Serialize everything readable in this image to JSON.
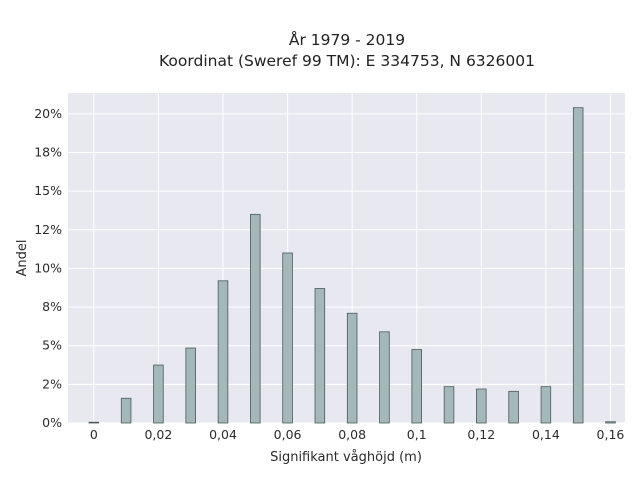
{
  "chart_data": {
    "type": "bar",
    "title": [
      "År 1979 - 2019",
      "Koordinat (Sweref 99 TM): E 334753, N 6326001"
    ],
    "xlabel": "Signifikant våghöjd (m)",
    "ylabel": "Andel",
    "x_ticks": [
      {
        "value": 0,
        "label": "0"
      },
      {
        "value": 0.02,
        "label": "0,02"
      },
      {
        "value": 0.04,
        "label": "0,04"
      },
      {
        "value": 0.06,
        "label": "0,06"
      },
      {
        "value": 0.08,
        "label": "0,08"
      },
      {
        "value": 0.1,
        "label": "0,1"
      },
      {
        "value": 0.12,
        "label": "0,12"
      },
      {
        "value": 0.14,
        "label": "0,14"
      },
      {
        "value": 0.16,
        "label": "0,16"
      }
    ],
    "y_ticks": [
      {
        "value": 0,
        "label": "0%"
      },
      {
        "value": 0.025,
        "label": "2%"
      },
      {
        "value": 0.05,
        "label": "5%"
      },
      {
        "value": 0.075,
        "label": "8%"
      },
      {
        "value": 0.1,
        "label": "10%"
      },
      {
        "value": 0.125,
        "label": "12%"
      },
      {
        "value": 0.15,
        "label": "15%"
      },
      {
        "value": 0.175,
        "label": "18%"
      },
      {
        "value": 0.2,
        "label": "20%"
      }
    ],
    "xlim": [
      -0.008,
      0.1645
    ],
    "ylim": [
      0,
      0.2135
    ],
    "x": [
      0,
      0.01,
      0.02,
      0.03,
      0.04,
      0.05,
      0.06,
      0.07,
      0.08,
      0.09,
      0.1,
      0.11,
      0.12,
      0.13,
      0.14,
      0.15,
      0.16
    ],
    "values": [
      0.0005,
      0.016,
      0.0375,
      0.0485,
      0.092,
      0.135,
      0.11,
      0.087,
      0.071,
      0.059,
      0.0475,
      0.0235,
      0.022,
      0.0205,
      0.0235,
      0.204,
      0.0008
    ],
    "grid": true,
    "background": "#e8e8f0",
    "bar_color": "#a3b8b9",
    "bar_edge_color": "#4a5a5a"
  }
}
